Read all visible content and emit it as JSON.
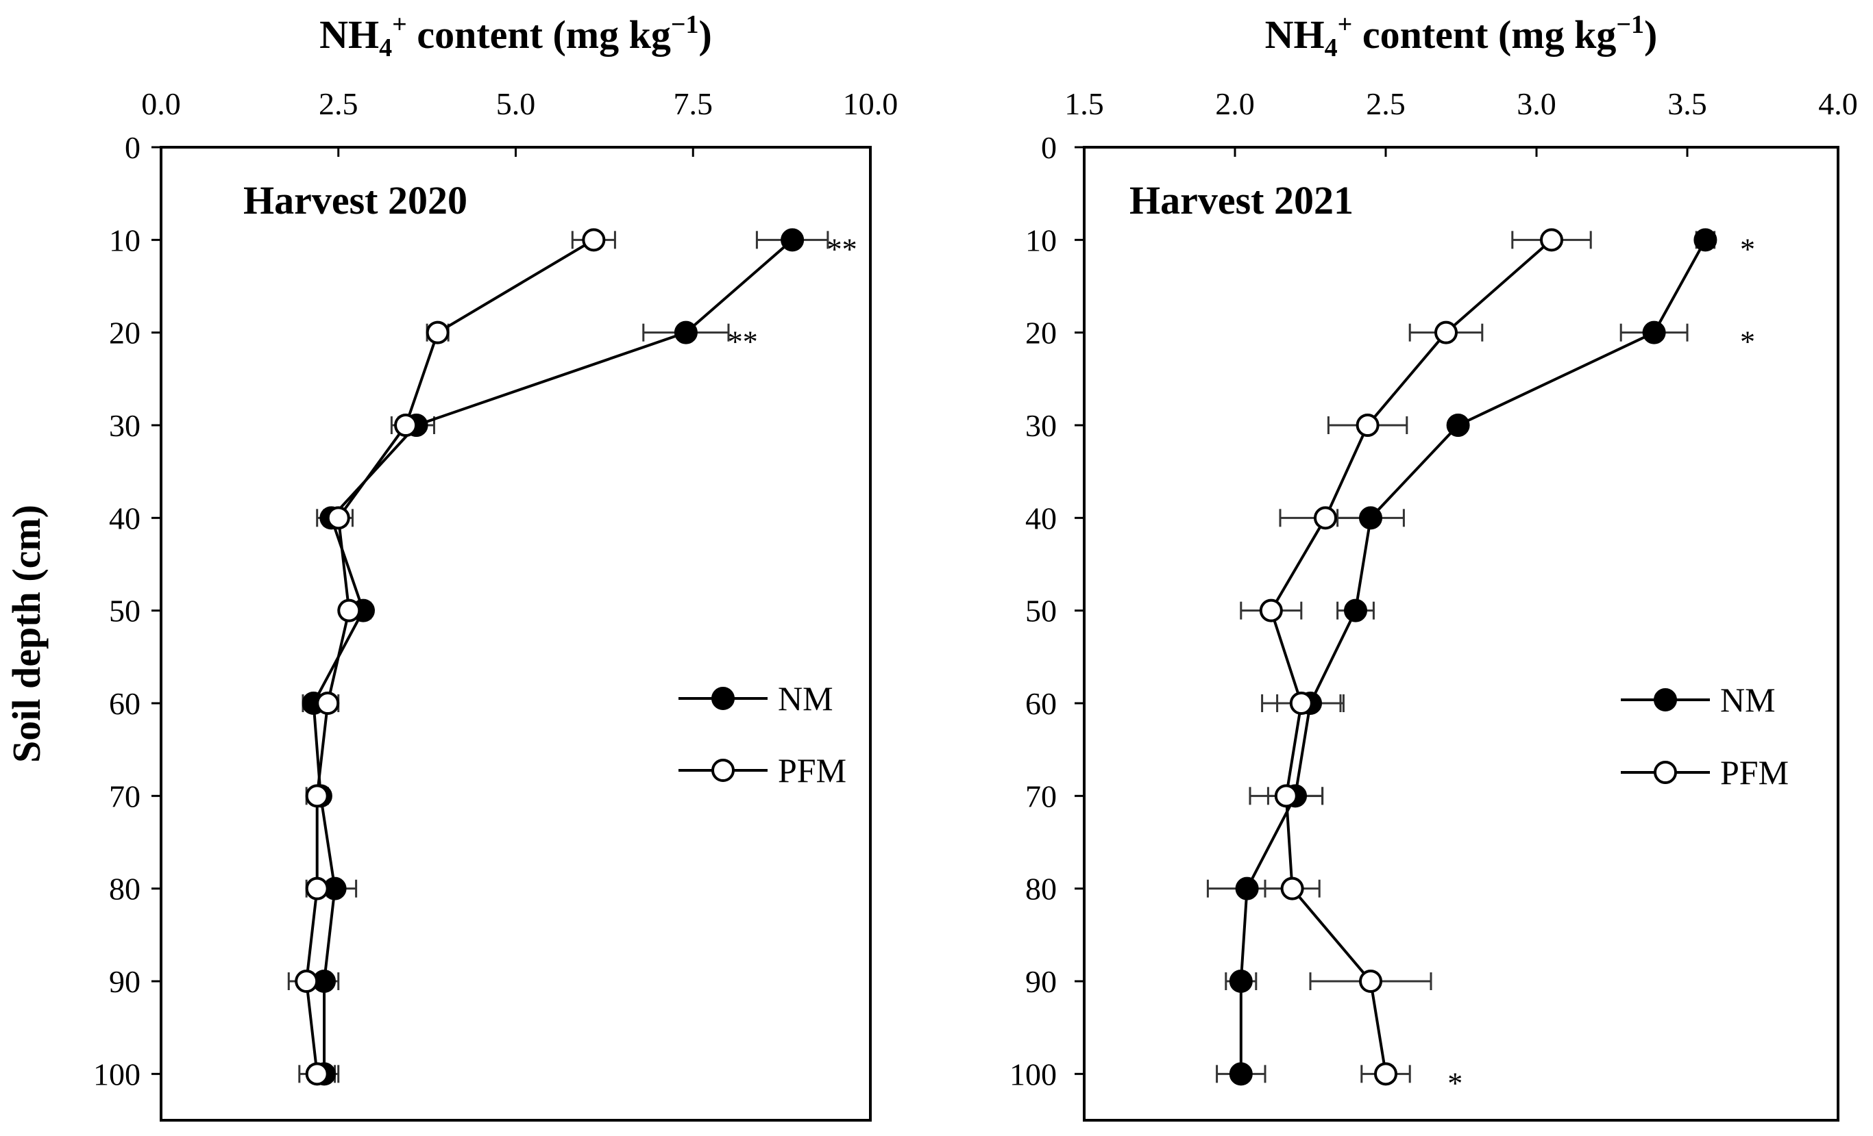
{
  "chart_data": [
    {
      "type": "line",
      "title": "Harvest 2020",
      "xlabel_main": "NH",
      "xlabel_sub": "4",
      "xlabel_sup": "+",
      "xlabel_rest": " content (mg kg",
      "xlabel_unit_sup": "−1",
      "xlabel_close": ")",
      "ylabel": "Soil depth (cm)",
      "xlim": [
        0,
        10
      ],
      "xticks": [
        "0.0",
        "2.5",
        "5.0",
        "7.5",
        "10.0"
      ],
      "ylim": [
        0,
        105
      ],
      "yticks": [
        "0",
        "10",
        "20",
        "30",
        "40",
        "50",
        "60",
        "70",
        "80",
        "90",
        "100"
      ],
      "legend_position": "center-right",
      "depth": [
        10,
        20,
        30,
        40,
        50,
        60,
        70,
        80,
        90,
        100
      ],
      "series": [
        {
          "name": "NM",
          "marker": "filled",
          "values": [
            8.9,
            7.4,
            3.6,
            2.4,
            2.85,
            2.15,
            2.25,
            2.45,
            2.3,
            2.3
          ],
          "errors": [
            0.5,
            0.6,
            0.25,
            0.2,
            0.1,
            0.15,
            0.1,
            0.3,
            0.2,
            0.2
          ]
        },
        {
          "name": "PFM",
          "marker": "open",
          "values": [
            6.1,
            3.9,
            3.45,
            2.5,
            2.65,
            2.35,
            2.2,
            2.2,
            2.05,
            2.2
          ],
          "errors": [
            0.3,
            0.15,
            0.2,
            0.2,
            0.1,
            0.15,
            0.15,
            0.15,
            0.25,
            0.25
          ]
        }
      ],
      "annotations": [
        {
          "depth": 10,
          "text": "**",
          "x": 9.6
        },
        {
          "depth": 20,
          "text": "**",
          "x": 8.2
        }
      ]
    },
    {
      "type": "line",
      "title": "Harvest 2021",
      "xlabel_main": "NH",
      "xlabel_sub": "4",
      "xlabel_sup": "+",
      "xlabel_rest": " content (mg kg",
      "xlabel_unit_sup": "−1",
      "xlabel_close": ")",
      "ylabel": "",
      "xlim": [
        1.5,
        4.0
      ],
      "xticks": [
        "1.5",
        "2.0",
        "2.5",
        "3.0",
        "3.5",
        "4.0"
      ],
      "ylim": [
        0,
        105
      ],
      "yticks": [
        "0",
        "10",
        "20",
        "30",
        "40",
        "50",
        "60",
        "70",
        "80",
        "90",
        "100"
      ],
      "legend_position": "center-right",
      "depth": [
        10,
        20,
        30,
        40,
        50,
        60,
        70,
        80,
        90,
        100
      ],
      "series": [
        {
          "name": "NM",
          "marker": "filled",
          "values": [
            3.56,
            3.39,
            2.74,
            2.45,
            2.4,
            2.25,
            2.2,
            2.04,
            2.02,
            2.02
          ],
          "errors": [
            0.03,
            0.11,
            0.02,
            0.11,
            0.06,
            0.11,
            0.09,
            0.13,
            0.05,
            0.08
          ]
        },
        {
          "name": "PFM",
          "marker": "open",
          "values": [
            3.05,
            2.7,
            2.44,
            2.3,
            2.12,
            2.22,
            2.17,
            2.19,
            2.45,
            2.5
          ],
          "errors": [
            0.13,
            0.12,
            0.13,
            0.15,
            0.1,
            0.13,
            0.12,
            0.09,
            0.2,
            0.08
          ]
        }
      ],
      "annotations": [
        {
          "depth": 10,
          "text": "*",
          "x": 3.7
        },
        {
          "depth": 20,
          "text": "*",
          "x": 3.7
        },
        {
          "depth": 100,
          "text": "*",
          "x": 2.73
        }
      ]
    }
  ]
}
